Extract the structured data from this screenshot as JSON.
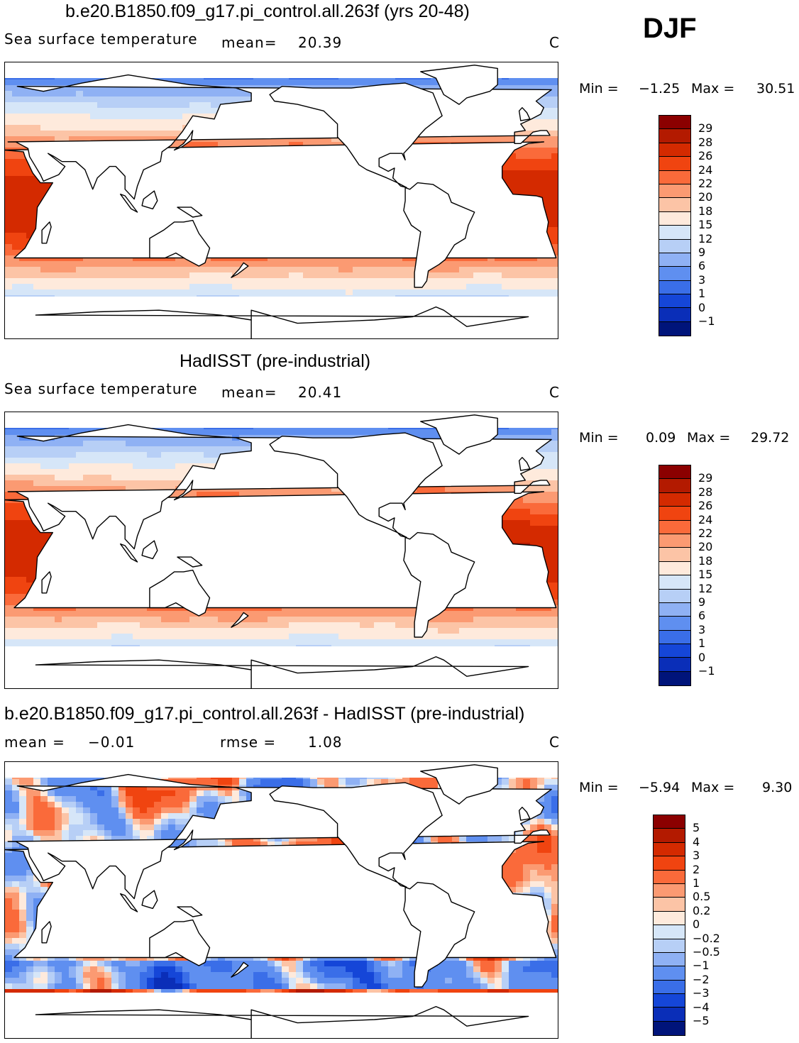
{
  "season": "DJF",
  "panels": [
    {
      "title": "b.e20.B1850.f09_g17.pi_control.all.263f (yrs 20-48)",
      "left_label": "Sea surface temperature",
      "mean_text": "mean=",
      "mean_value": "20.39",
      "rmse_text": "",
      "rmse_value": "",
      "unit": "C",
      "min_text": "Min =",
      "min_value": "−1.25",
      "max_text": "Max =",
      "max_value": "30.51",
      "colorbar": {
        "labels": [
          "29",
          "28",
          "26",
          "24",
          "22",
          "20",
          "18",
          "15",
          "12",
          "9",
          "6",
          "3",
          "1",
          "0",
          "−1"
        ],
        "colors": [
          "#8b0000",
          "#b31a00",
          "#d42a00",
          "#f04410",
          "#fa6a3a",
          "#fb9a72",
          "#fcc4a6",
          "#feeadc",
          "#d6e6f8",
          "#b7cff6",
          "#8fb1f4",
          "#5f8ff0",
          "#3a6ee8",
          "#1546d8",
          "#0a2eb8",
          "#00147a"
        ]
      },
      "field": "sst_model"
    },
    {
      "title": "HadISST (pre-industrial)",
      "left_label": "Sea surface temperature",
      "mean_text": "mean=",
      "mean_value": "20.41",
      "rmse_text": "",
      "rmse_value": "",
      "unit": "C",
      "min_text": "Min =",
      "min_value": "0.09",
      "max_text": "Max =",
      "max_value": "29.72",
      "colorbar": {
        "labels": [
          "29",
          "28",
          "26",
          "24",
          "22",
          "20",
          "18",
          "15",
          "12",
          "9",
          "6",
          "3",
          "1",
          "0",
          "−1"
        ],
        "colors": [
          "#8b0000",
          "#b31a00",
          "#d42a00",
          "#f04410",
          "#fa6a3a",
          "#fb9a72",
          "#fcc4a6",
          "#feeadc",
          "#d6e6f8",
          "#b7cff6",
          "#8fb1f4",
          "#5f8ff0",
          "#3a6ee8",
          "#1546d8",
          "#0a2eb8",
          "#00147a"
        ]
      },
      "field": "sst_obs"
    },
    {
      "title": "b.e20.B1850.f09_g17.pi_control.all.263f - HadISST (pre-industrial)",
      "left_label": "",
      "mean_text": "mean =",
      "mean_value": "−0.01",
      "rmse_text": "rmse =",
      "rmse_value": "1.08",
      "unit": "C",
      "min_text": "Min =",
      "min_value": "−5.94",
      "max_text": "Max =",
      "max_value": "9.30",
      "colorbar": {
        "labels": [
          "5",
          "4",
          "3",
          "2",
          "1",
          "0.5",
          "0.2",
          "0",
          "−0.2",
          "−0.5",
          "−1",
          "−2",
          "−3",
          "−4",
          "−5"
        ],
        "colors": [
          "#8b0000",
          "#b31a00",
          "#d42a00",
          "#f04410",
          "#fa6a3a",
          "#fb9a72",
          "#fcc4a6",
          "#feeadc",
          "#d6e6f8",
          "#b7cff6",
          "#8fb1f4",
          "#5f8ff0",
          "#3a6ee8",
          "#1546d8",
          "#0a2eb8",
          "#00147a"
        ]
      },
      "field": "sst_diff"
    }
  ]
}
